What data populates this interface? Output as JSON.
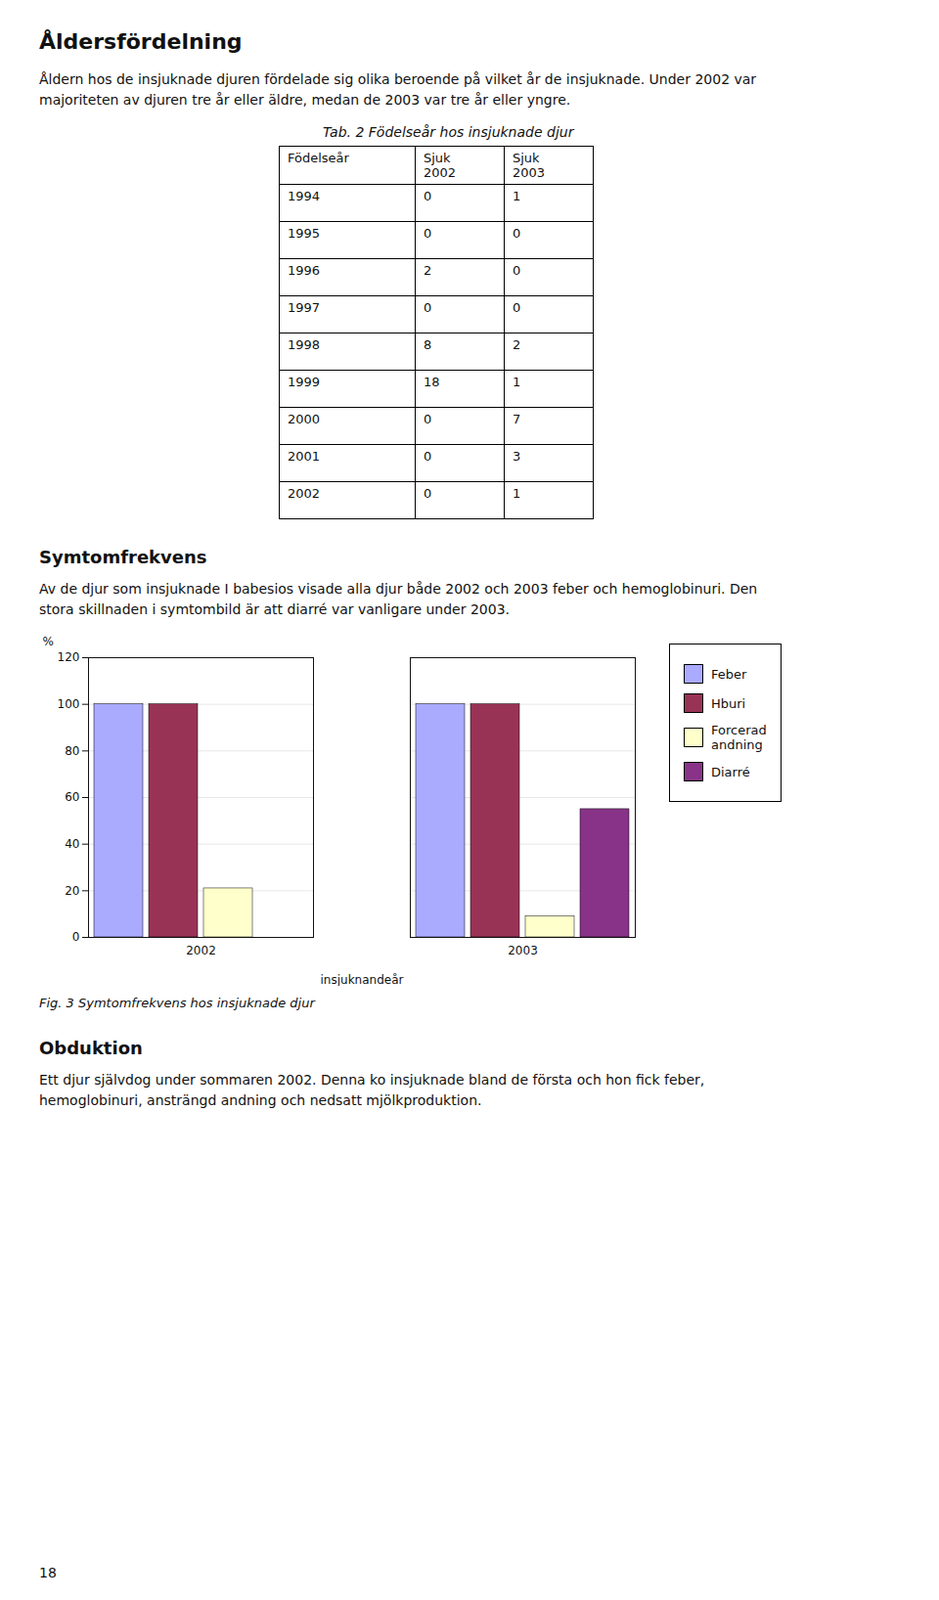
{
  "chart_data": [
    {
      "type": "table",
      "title": "Tab. 2 Födelseår hos insjuknade djur",
      "xlabel": "Födelseår",
      "categories": [
        "1994",
        "1995",
        "1996",
        "1997",
        "1998",
        "1999",
        "2000",
        "2001",
        "2002"
      ],
      "series": [
        {
          "name": "Sjuk\n2002",
          "values": [
            0,
            0,
            2,
            0,
            8,
            18,
            0,
            0,
            0
          ]
        },
        {
          "name": "Sjuk\n2003",
          "values": [
            1,
            0,
            0,
            0,
            2,
            1,
            7,
            3,
            1
          ]
        }
      ]
    },
    {
      "type": "bar",
      "title": "Fig. 3  Symtomfrekvens hos insjuknade djur",
      "xlabel": "insjuknandeår",
      "ylabel": "%",
      "categories": [
        "2002",
        "2003"
      ],
      "series": [
        {
          "name": "Feber",
          "color": "#aaaaff",
          "values": [
            100,
            100
          ]
        },
        {
          "name": "Hburi",
          "color": "#993355",
          "values": [
            100,
            100
          ]
        },
        {
          "name": "Forcerad\nandning",
          "color": "#ffffcc",
          "values": [
            21,
            9
          ]
        },
        {
          "name": "Diarré",
          "color": "#883388",
          "values": [
            0,
            55
          ]
        }
      ],
      "ylim": [
        0,
        120
      ],
      "yticks": [
        0,
        20,
        40,
        60,
        80,
        100,
        120
      ],
      "grid": true,
      "legend": "right",
      "annotations": [
        "Åldersfördelning",
        "Åldern hos de insjuknade djuren fördelade sig olika beroende på vilket år de insjuknade. Under 2002 var majoriteten av djuren tre år eller äldre, medan de 2003 var tre år eller yngre.",
        "Symtomfrekvens",
        "Av de djur som insjuknade I babesios visade alla djur både 2002 och 2003 feber och hemoglobinuri. Den stora skillnaden i symtombild är att diarré var vanligare under 2003.",
        "Obduktion",
        "Ett djur självdog under sommaren 2002. Denna ko insjuknade bland de första och hon fick feber, hemoglobinuri, ansträngd andning och nedsatt mjölkproduktion.",
        "18"
      ]
    }
  ]
}
